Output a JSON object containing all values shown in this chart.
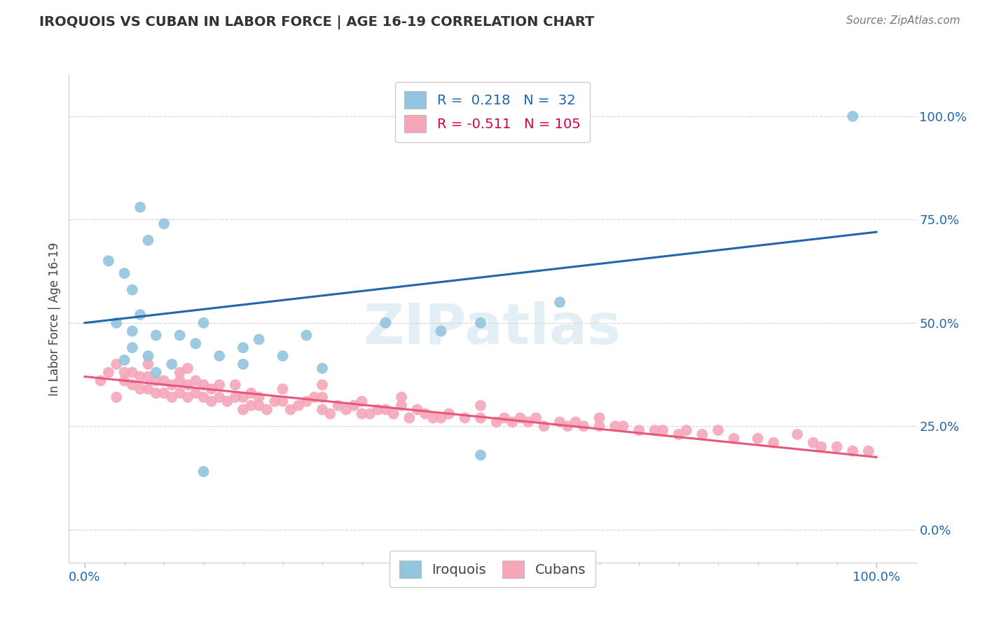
{
  "title": "IROQUOIS VS CUBAN IN LABOR FORCE | AGE 16-19 CORRELATION CHART",
  "source": "Source: ZipAtlas.com",
  "ylabel": "In Labor Force | Age 16-19",
  "ytick_labels": [
    "0.0%",
    "25.0%",
    "50.0%",
    "75.0%",
    "100.0%"
  ],
  "ytick_values": [
    0.0,
    0.25,
    0.5,
    0.75,
    1.0
  ],
  "xtick_labels": [
    "0.0%",
    "100.0%"
  ],
  "xtick_values": [
    0.0,
    1.0
  ],
  "xlim": [
    -0.02,
    1.05
  ],
  "ylim": [
    -0.08,
    1.1
  ],
  "iroquois_R": 0.218,
  "iroquois_N": 32,
  "cubans_R": -0.511,
  "cubans_N": 105,
  "iroquois_color": "#92c5de",
  "cubans_color": "#f4a7b9",
  "iroquois_line_color": "#2166ac",
  "cubans_line_color": "#e8577a",
  "iroquois_line_start_y": 0.5,
  "iroquois_line_end_y": 0.72,
  "cubans_line_start_y": 0.37,
  "cubans_line_end_y": 0.175,
  "background_color": "#ffffff",
  "grid_color": "#d4d4d4",
  "watermark_text": "ZIPatlas",
  "watermark_color": "#cde0ed",
  "title_fontsize": 14,
  "axis_label_fontsize": 12,
  "tick_fontsize": 13,
  "source_fontsize": 11,
  "legend_fontsize": 14,
  "scatter_size": 130,
  "line_width": 2.2,
  "iroquois_seed_x": [
    0.07,
    0.1,
    0.03,
    0.05,
    0.06,
    0.08,
    0.04,
    0.07,
    0.06,
    0.09,
    0.12,
    0.15,
    0.14,
    0.17,
    0.2,
    0.25,
    0.3,
    0.22,
    0.38,
    0.45,
    0.5,
    0.28,
    0.08,
    0.06,
    0.05,
    0.09,
    0.11,
    0.2,
    0.15,
    0.6,
    0.5,
    0.97
  ],
  "iroquois_seed_y": [
    0.78,
    0.74,
    0.65,
    0.62,
    0.58,
    0.7,
    0.5,
    0.52,
    0.48,
    0.47,
    0.47,
    0.5,
    0.45,
    0.42,
    0.44,
    0.42,
    0.39,
    0.46,
    0.5,
    0.48,
    0.5,
    0.47,
    0.42,
    0.44,
    0.41,
    0.38,
    0.4,
    0.4,
    0.14,
    0.55,
    0.18,
    1.0
  ],
  "cubans_seed_x": [
    0.02,
    0.03,
    0.04,
    0.04,
    0.05,
    0.05,
    0.06,
    0.06,
    0.07,
    0.07,
    0.08,
    0.08,
    0.08,
    0.09,
    0.09,
    0.1,
    0.1,
    0.11,
    0.11,
    0.12,
    0.12,
    0.12,
    0.13,
    0.13,
    0.13,
    0.14,
    0.14,
    0.15,
    0.15,
    0.16,
    0.16,
    0.17,
    0.17,
    0.18,
    0.19,
    0.19,
    0.2,
    0.2,
    0.21,
    0.21,
    0.22,
    0.22,
    0.23,
    0.24,
    0.25,
    0.25,
    0.26,
    0.27,
    0.28,
    0.29,
    0.3,
    0.3,
    0.3,
    0.31,
    0.32,
    0.33,
    0.34,
    0.35,
    0.35,
    0.36,
    0.37,
    0.38,
    0.39,
    0.4,
    0.4,
    0.41,
    0.42,
    0.43,
    0.44,
    0.45,
    0.46,
    0.48,
    0.5,
    0.5,
    0.52,
    0.53,
    0.54,
    0.55,
    0.56,
    0.57,
    0.58,
    0.6,
    0.61,
    0.62,
    0.63,
    0.65,
    0.65,
    0.67,
    0.68,
    0.7,
    0.72,
    0.73,
    0.75,
    0.76,
    0.78,
    0.8,
    0.82,
    0.85,
    0.87,
    0.9,
    0.92,
    0.93,
    0.95,
    0.97,
    0.99
  ],
  "cubans_seed_y": [
    0.36,
    0.38,
    0.32,
    0.4,
    0.36,
    0.38,
    0.35,
    0.38,
    0.34,
    0.37,
    0.34,
    0.37,
    0.4,
    0.33,
    0.36,
    0.33,
    0.36,
    0.32,
    0.35,
    0.33,
    0.36,
    0.38,
    0.32,
    0.35,
    0.39,
    0.33,
    0.36,
    0.32,
    0.35,
    0.31,
    0.34,
    0.32,
    0.35,
    0.31,
    0.32,
    0.35,
    0.29,
    0.32,
    0.3,
    0.33,
    0.3,
    0.32,
    0.29,
    0.31,
    0.31,
    0.34,
    0.29,
    0.3,
    0.31,
    0.32,
    0.29,
    0.32,
    0.35,
    0.28,
    0.3,
    0.29,
    0.3,
    0.28,
    0.31,
    0.28,
    0.29,
    0.29,
    0.28,
    0.3,
    0.32,
    0.27,
    0.29,
    0.28,
    0.27,
    0.27,
    0.28,
    0.27,
    0.27,
    0.3,
    0.26,
    0.27,
    0.26,
    0.27,
    0.26,
    0.27,
    0.25,
    0.26,
    0.25,
    0.26,
    0.25,
    0.25,
    0.27,
    0.25,
    0.25,
    0.24,
    0.24,
    0.24,
    0.23,
    0.24,
    0.23,
    0.24,
    0.22,
    0.22,
    0.21,
    0.23,
    0.21,
    0.2,
    0.2,
    0.19,
    0.19
  ]
}
